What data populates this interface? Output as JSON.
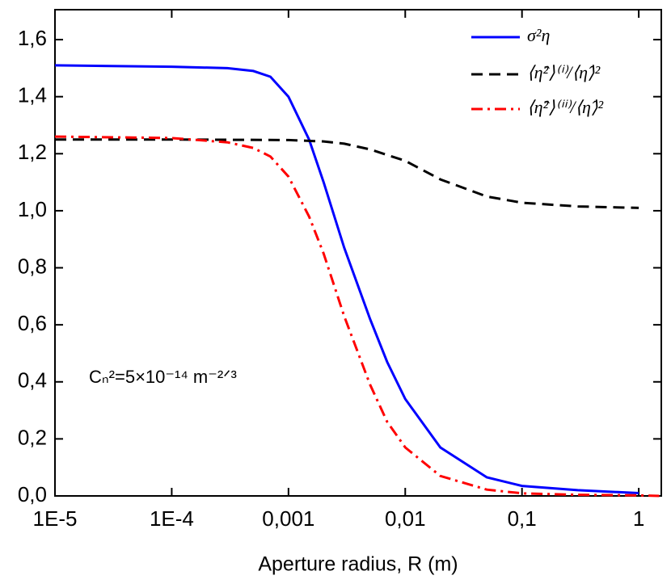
{
  "chart_data": {
    "type": "line",
    "xlabel": "Aperture radius, R (m)",
    "annotation": "Cₙ²=5×10⁻¹⁴ m⁻²ᐟ³",
    "xscale": "log",
    "xlim": [
      1e-05,
      1.56
    ],
    "ylim": [
      0,
      1.705
    ],
    "xticks": [
      {
        "value": 1e-05,
        "label": "1E-5"
      },
      {
        "value": 0.0001,
        "label": "1E-4"
      },
      {
        "value": 0.001,
        "label": "0,001"
      },
      {
        "value": 0.01,
        "label": "0,01"
      },
      {
        "value": 0.1,
        "label": "0,1"
      },
      1
    ],
    "yticks": [
      {
        "value": 0,
        "label": "0,0"
      },
      {
        "value": 0.2,
        "label": "0,2"
      },
      {
        "value": 0.4,
        "label": "0,4"
      },
      {
        "value": 0.6,
        "label": "0,6"
      },
      {
        "value": 0.8,
        "label": "0,8"
      },
      {
        "value": 1.0,
        "label": "1,0"
      },
      {
        "value": 1.2,
        "label": "1,2"
      },
      {
        "value": 1.4,
        "label": "1,4"
      },
      {
        "value": 1.6,
        "label": "1,6"
      }
    ],
    "legend": "upper right",
    "series": [
      {
        "name": "σ²η",
        "color": "#0000ff",
        "dash": "solid",
        "x": [
          1e-05,
          0.0001,
          0.0003,
          0.0005,
          0.0007,
          0.001,
          0.0015,
          0.002,
          0.003,
          0.005,
          0.007,
          0.01,
          0.02,
          0.05,
          0.1,
          0.3,
          1
        ],
        "values": [
          1.51,
          1.505,
          1.5,
          1.49,
          1.47,
          1.4,
          1.25,
          1.1,
          0.87,
          0.62,
          0.47,
          0.34,
          0.17,
          0.065,
          0.035,
          0.02,
          0.01
        ]
      },
      {
        "name": "⟨η̂²⟩⁽ⁱ⁾/⟨η̂⟩²",
        "color": "#000000",
        "dash": "dashed",
        "x": [
          1e-05,
          0.0001,
          0.001,
          0.002,
          0.003,
          0.005,
          0.01,
          0.02,
          0.05,
          0.1,
          0.3,
          1
        ],
        "values": [
          1.25,
          1.25,
          1.248,
          1.243,
          1.235,
          1.215,
          1.175,
          1.11,
          1.05,
          1.028,
          1.015,
          1.01
        ]
      },
      {
        "name": "⟨η̂²⟩⁽ⁱⁱ⁾/⟨η̂⟩²",
        "color": "#ff0000",
        "dash": "dashdot",
        "x": [
          1e-05,
          0.0001,
          0.0003,
          0.0005,
          0.0007,
          0.001,
          0.0015,
          0.002,
          0.003,
          0.005,
          0.007,
          0.01,
          0.02,
          0.05,
          0.1,
          0.3,
          1,
          1.5
        ],
        "values": [
          1.26,
          1.255,
          1.24,
          1.22,
          1.19,
          1.12,
          0.98,
          0.85,
          0.63,
          0.39,
          0.26,
          0.17,
          0.07,
          0.022,
          0.009,
          0.004,
          0.002,
          0.0
        ]
      }
    ]
  }
}
